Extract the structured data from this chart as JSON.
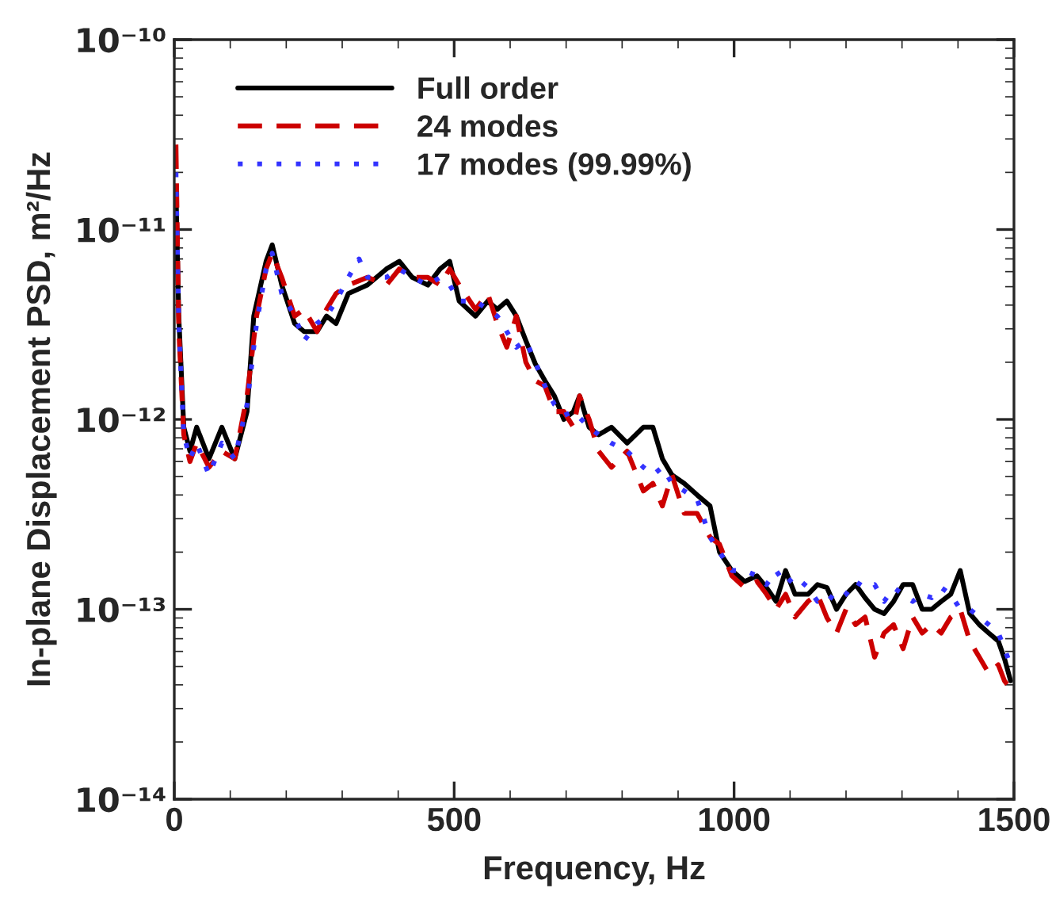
{
  "chart_data": {
    "type": "line",
    "xlabel": "Frequency, Hz",
    "ylabel": "In-plane Displacement PSD, m²/Hz",
    "log": "y",
    "xlim": [
      0,
      1500
    ],
    "xticks": [
      0,
      500,
      1000,
      1500
    ],
    "ylim": [
      1e-14,
      1e-10
    ],
    "yticks": [
      {
        "value": 1e-14,
        "label": "10⁻¹⁴"
      },
      {
        "value": 1e-13,
        "label": "10⁻¹³"
      },
      {
        "value": 1e-12,
        "label": "10⁻¹²"
      },
      {
        "value": 1e-11,
        "label": "10⁻¹¹"
      },
      {
        "value": 1e-10,
        "label": "10⁻¹⁰"
      }
    ],
    "grid": false,
    "legend": "top left",
    "marker": "none",
    "series": [
      {
        "name": "Full order",
        "color": "#000000",
        "line_style": "solid",
        "x": [
          3,
          8,
          17,
          28,
          40,
          62,
          85,
          108,
          130,
          142,
          164,
          175,
          192,
          215,
          232,
          255,
          272,
          289,
          311,
          345,
          379,
          402,
          425,
          453,
          475,
          492,
          509,
          538,
          560,
          577,
          594,
          611,
          628,
          645,
          662,
          679,
          696,
          713,
          724,
          741,
          758,
          781,
          809,
          838,
          855,
          872,
          889,
          911,
          934,
          957,
          974,
          996,
          1019,
          1041,
          1058,
          1075,
          1092,
          1109,
          1132,
          1149,
          1166,
          1183,
          1200,
          1217,
          1234,
          1251,
          1268,
          1285,
          1302,
          1319,
          1336,
          1353,
          1370,
          1387,
          1404,
          1421,
          1438,
          1455,
          1472,
          1483,
          1494
        ],
        "values": [
          1.6e-11,
          3.5e-12,
          9.1e-13,
          6.8e-13,
          9.1e-13,
          6.2e-13,
          9.1e-13,
          6.2e-13,
          1.1e-12,
          3.5e-12,
          6.8e-12,
          8.3e-12,
          5.1e-12,
          3.2e-12,
          2.9e-12,
          2.9e-12,
          3.5e-12,
          3.2e-12,
          4.6e-12,
          5.1e-12,
          6.2e-12,
          6.8e-12,
          5.6e-12,
          5.1e-12,
          6.2e-12,
          6.8e-12,
          4.2e-12,
          3.5e-12,
          4.2e-12,
          3.8e-12,
          4.2e-12,
          3.5e-12,
          2.6e-12,
          1.96e-12,
          1.6e-12,
          1.33e-12,
          1e-12,
          1.1e-12,
          1.33e-12,
          9.1e-13,
          8.3e-13,
          9.1e-13,
          7.5e-13,
          9.1e-13,
          9.1e-13,
          6.2e-13,
          5.1e-13,
          4.6e-13,
          4e-13,
          3.5e-13,
          2e-13,
          1.6e-13,
          1.4e-13,
          1.5e-13,
          1.3e-13,
          1.1e-13,
          1.6e-13,
          1.2e-13,
          1.2e-13,
          1.35e-13,
          1.3e-13,
          1e-13,
          1.2e-13,
          1.35e-13,
          1.15e-13,
          1e-13,
          9.5e-14,
          1.1e-13,
          1.35e-13,
          1.35e-13,
          1e-13,
          1e-13,
          1.1e-13,
          1.2e-13,
          1.6e-13,
          9.5e-14,
          8.3e-14,
          7.5e-14,
          6.8e-14,
          5.5e-14,
          4.2e-14
        ]
      },
      {
        "name": "24 modes",
        "color": "#cc0000",
        "line_style": "dashed",
        "x": [
          3,
          8,
          17,
          28,
          40,
          62,
          85,
          108,
          130,
          147,
          164,
          175,
          192,
          215,
          232,
          255,
          272,
          289,
          311,
          345,
          379,
          402,
          425,
          453,
          475,
          492,
          509,
          538,
          560,
          577,
          594,
          611,
          628,
          645,
          662,
          679,
          696,
          713,
          724,
          741,
          758,
          781,
          809,
          838,
          855,
          872,
          889,
          911,
          934,
          957,
          974,
          996,
          1019,
          1041,
          1058,
          1075,
          1092,
          1109,
          1132,
          1149,
          1166,
          1183,
          1200,
          1217,
          1234,
          1251,
          1268,
          1285,
          1302,
          1319,
          1336,
          1353,
          1370,
          1387,
          1404,
          1421,
          1438,
          1455,
          1472,
          1483,
          1494
        ],
        "values": [
          2.8e-11,
          3e-12,
          8.3e-13,
          6e-13,
          7.5e-13,
          5.6e-13,
          6.8e-13,
          6.2e-13,
          1.33e-12,
          3.5e-12,
          6.2e-12,
          7.5e-12,
          5.6e-12,
          3.5e-12,
          3.8e-12,
          2.9e-12,
          3.8e-12,
          4.6e-12,
          5.1e-12,
          5.6e-12,
          5.1e-12,
          6.2e-12,
          5.6e-12,
          5.6e-12,
          5.1e-12,
          6.2e-12,
          5.1e-12,
          3.8e-12,
          4.6e-12,
          3.2e-12,
          2.4e-12,
          3.5e-12,
          2e-12,
          1.6e-12,
          1.5e-12,
          1.1e-12,
          1.1e-12,
          9.1e-13,
          1.33e-12,
          1e-12,
          6.8e-13,
          5.6e-13,
          6.8e-13,
          4.2e-13,
          4.6e-13,
          3.5e-13,
          5.1e-13,
          3.2e-13,
          3.2e-13,
          2.4e-13,
          2.2e-13,
          1.5e-13,
          1.3e-13,
          1.4e-13,
          1.2e-13,
          1e-13,
          1.2e-13,
          9.1e-14,
          1.1e-13,
          1.2e-13,
          9e-14,
          7.5e-14,
          1e-13,
          8.3e-14,
          9.1e-14,
          5.6e-14,
          7.5e-14,
          8.3e-14,
          6.2e-14,
          9.1e-14,
          7.5e-14,
          8.3e-14,
          7.5e-14,
          9.1e-14,
          1e-13,
          6.8e-14,
          5.6e-14,
          4.6e-14,
          5.1e-14,
          4.2e-14,
          3.8e-14
        ]
      },
      {
        "name": "17 modes (99.99%)",
        "color": "#3333ff",
        "line_style": "dotted",
        "x": [
          3,
          8,
          17,
          28,
          40,
          62,
          85,
          108,
          130,
          147,
          164,
          175,
          192,
          215,
          232,
          255,
          272,
          289,
          311,
          330,
          345,
          379,
          402,
          425,
          453,
          475,
          492,
          509,
          538,
          560,
          577,
          594,
          611,
          628,
          645,
          662,
          679,
          696,
          713,
          741,
          758,
          781,
          809,
          838,
          855,
          872,
          889,
          911,
          934,
          957,
          974,
          996,
          1019,
          1041,
          1058,
          1075,
          1092,
          1109,
          1132,
          1149,
          1166,
          1183,
          1200,
          1217,
          1234,
          1251,
          1268,
          1285,
          1302,
          1319,
          1336,
          1353,
          1370,
          1387,
          1404,
          1421,
          1438,
          1455,
          1472,
          1483,
          1494
        ],
        "values": [
          2e-11,
          3.2e-12,
          8.3e-13,
          6.2e-13,
          7.5e-13,
          5.1e-13,
          7.5e-13,
          6.2e-13,
          1.2e-12,
          3.2e-12,
          6.2e-12,
          7.5e-12,
          4.6e-12,
          3.5e-12,
          2.6e-12,
          3.2e-12,
          3.5e-12,
          4.2e-12,
          5.6e-12,
          7e-12,
          5.6e-12,
          5.6e-12,
          6.2e-12,
          5.6e-12,
          5.1e-12,
          5.6e-12,
          5.1e-12,
          4.2e-12,
          4.2e-12,
          3.8e-12,
          3.5e-12,
          2.9e-12,
          2.4e-12,
          2.6e-12,
          2e-12,
          1.5e-12,
          1.2e-12,
          1.05e-12,
          1.1e-12,
          9.1e-13,
          8.3e-13,
          7.5e-13,
          6.8e-13,
          5.6e-13,
          5.1e-13,
          5.6e-13,
          4.6e-13,
          4.2e-13,
          3.8e-13,
          2.4e-13,
          2e-13,
          1.6e-13,
          1.6e-13,
          1.5e-13,
          1.35e-13,
          1.6e-13,
          1.35e-13,
          1.5e-13,
          1.3e-13,
          1.1e-13,
          1.2e-13,
          1.1e-13,
          1.2e-13,
          1.4e-13,
          1.3e-13,
          1.35e-13,
          1.1e-13,
          1.3e-13,
          1.2e-13,
          1.1e-13,
          1.2e-13,
          1.15e-13,
          1.3e-13,
          1.2e-13,
          1e-13,
          1e-13,
          9.1e-14,
          8.3e-14,
          7.5e-14,
          6.2e-14,
          5.1e-14
        ]
      }
    ]
  }
}
